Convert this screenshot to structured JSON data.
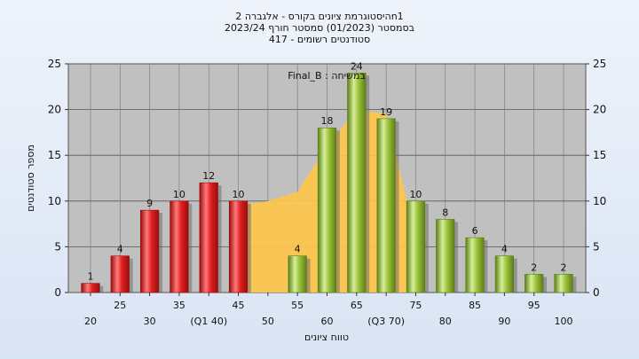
{
  "chart_data": {
    "type": "bar",
    "title_lines": [
      "היסטוגרמת ציונים בקורס - אלגברה 2n1",
      "בסמסטר  (01/2023)  סמסטר חורף  2023/24",
      "417 - סטודנטים רשומים"
    ],
    "annotation": "Final_B : במשיחה",
    "xlabel": "טווח ציונים",
    "ylabel": "מספר סטודנטים",
    "ylim": [
      0,
      25
    ],
    "yticks": [
      0,
      5,
      10,
      15,
      20,
      25
    ],
    "grid": true,
    "x_tick_labels": [
      "20",
      "25",
      "30",
      "35",
      "(Q1 40)",
      "45",
      "50",
      "55",
      "60",
      "65",
      "(Q3 70)",
      "75",
      "80",
      "85",
      "90",
      "95",
      "100"
    ],
    "categories": [
      20,
      25,
      30,
      35,
      40,
      45,
      50,
      55,
      60,
      65,
      70,
      75,
      80,
      85,
      90,
      95,
      100
    ],
    "values": [
      1,
      4,
      9,
      10,
      12,
      10,
      0,
      4,
      18,
      24,
      19,
      10,
      8,
      6,
      4,
      2,
      2
    ],
    "bar_groups": [
      "red",
      "red",
      "red",
      "red",
      "red",
      "red",
      "red",
      "green",
      "green",
      "green",
      "green",
      "green",
      "green",
      "green",
      "green",
      "green",
      "green"
    ],
    "colors": {
      "red_light": "#ff7b7b",
      "red": "#e02020",
      "red_dark": "#9a0c0c",
      "green_light": "#d6ef9a",
      "green": "#9cc43c",
      "green_dark": "#5d7e16",
      "area": "#ffc64a",
      "plot_bg": "#c0c0c0",
      "red_label": "#8b0000",
      "green_label": "#2b4a9c"
    },
    "area_overlay": {
      "categories": [
        45,
        50,
        55,
        60,
        65,
        70,
        75
      ],
      "values": [
        9.5,
        10,
        11,
        16,
        20,
        19.5,
        6
      ]
    }
  }
}
